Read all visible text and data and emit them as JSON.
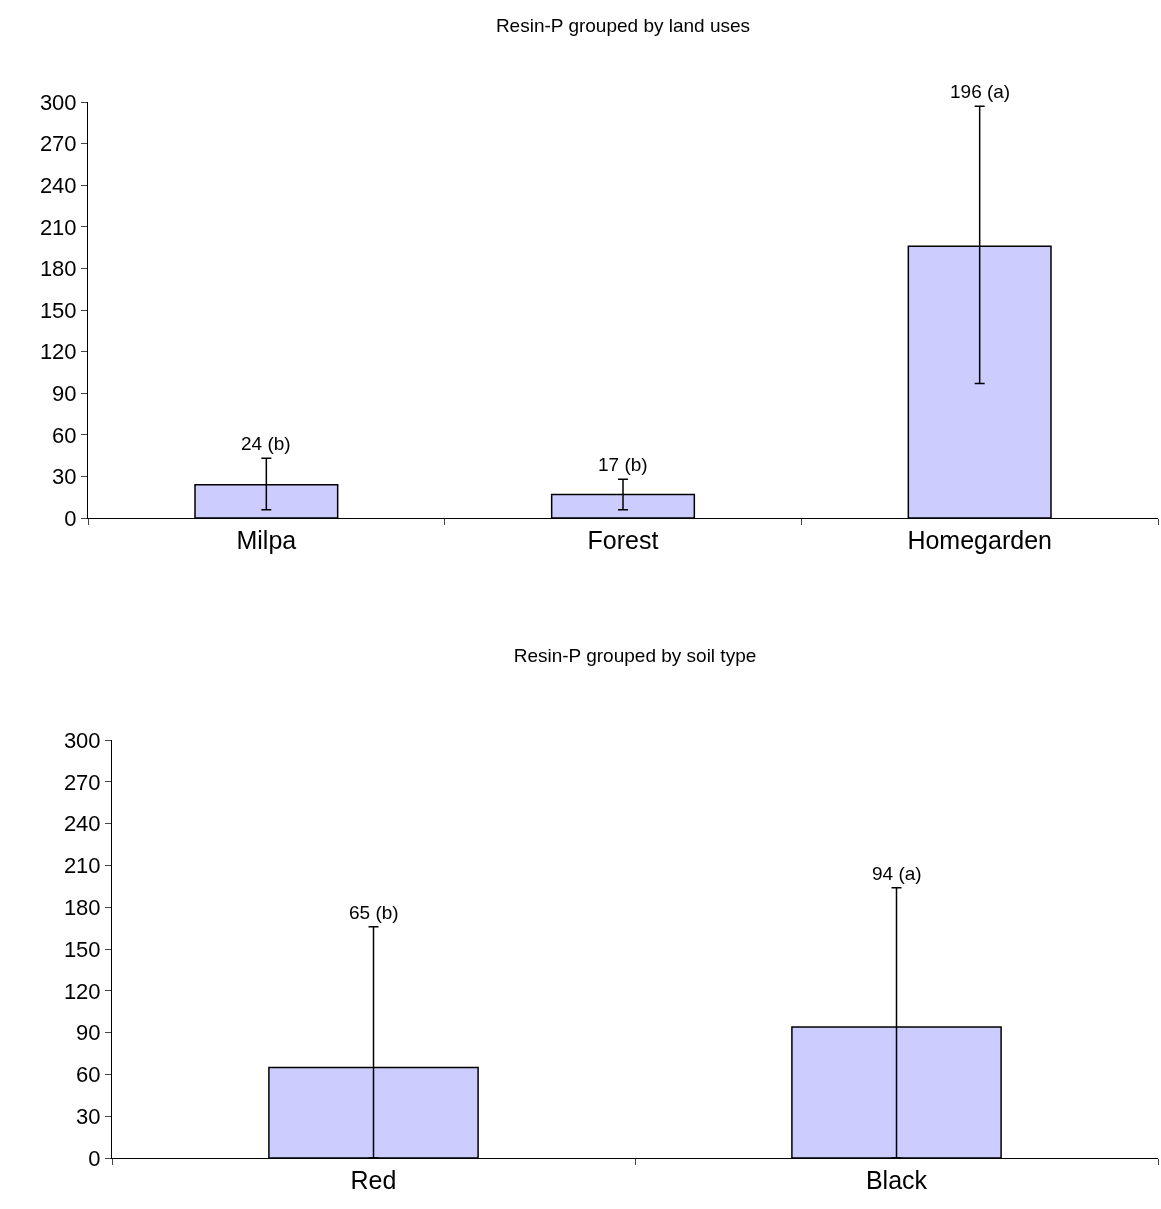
{
  "chart_data": [
    {
      "type": "bar",
      "title": "Resin-P grouped by land uses",
      "categories": [
        "Milpa",
        "Forest",
        "Homegarden"
      ],
      "values": [
        24,
        17,
        196
      ],
      "color": "#ccccff",
      "errors": [
        [
          6,
          43
        ],
        [
          6,
          28
        ],
        [
          97,
          297
        ]
      ],
      "annotations": [
        {
          "text": "24 (b)",
          "x": "Milpa",
          "y": 43
        },
        {
          "text": "17 (b)",
          "x": "Forest",
          "y": 28
        },
        {
          "text": "196 (a)",
          "x": "Homegarden",
          "y": 297
        }
      ],
      "ylim": [
        0,
        300
      ],
      "yticks": [
        0,
        30,
        60,
        90,
        120,
        150,
        180,
        210,
        240,
        270,
        300
      ],
      "grid": false,
      "legend": false
    },
    {
      "type": "bar",
      "title": "Resin-P grouped by soil type",
      "categories": [
        "Red",
        "Black"
      ],
      "values": [
        65,
        94
      ],
      "color": "#ccccff",
      "errors": [
        [
          0,
          166
        ],
        [
          0,
          194
        ]
      ],
      "annotations": [
        {
          "text": "65 (b)",
          "x": "Red",
          "y": 166
        },
        {
          "text": "94 (a)",
          "x": "Black",
          "y": 194
        }
      ],
      "ylim": [
        0,
        300
      ],
      "yticks": [
        0,
        30,
        60,
        90,
        120,
        150,
        180,
        210,
        240,
        270,
        300
      ],
      "grid": false,
      "legend": false
    }
  ]
}
